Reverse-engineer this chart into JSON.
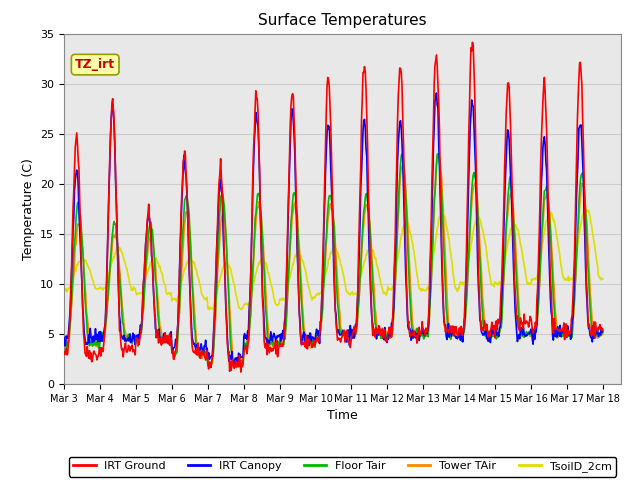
{
  "title": "Surface Temperatures",
  "xlabel": "Time",
  "ylabel": "Temperature (C)",
  "ylim": [
    0,
    35
  ],
  "annotation_text": "TZ_irt",
  "legend_labels": [
    "IRT Ground",
    "IRT Canopy",
    "Floor Tair",
    "Tower TAir",
    "TsoilD_2cm"
  ],
  "legend_colors": [
    "#ff0000",
    "#0000ff",
    "#00bb00",
    "#ff8800",
    "#dddd00"
  ],
  "line_colors": {
    "irt_ground": "#ff0000",
    "irt_canopy": "#0000ff",
    "floor_tair": "#00bb00",
    "tower_tair": "#ff8800",
    "tsoil_2cm": "#dddd00"
  },
  "x_tick_labels": [
    "Mar 3",
    "Mar 4",
    "Mar 5",
    "Mar 6",
    "Mar 7",
    "Mar 8",
    "Mar 9",
    "Mar 10",
    "Mar 11",
    "Mar 12",
    "Mar 13",
    "Mar 14",
    "Mar 15",
    "Mar 16",
    "Mar 17",
    "Mar 18"
  ],
  "yticks": [
    0,
    5,
    10,
    15,
    20,
    25,
    30,
    35
  ],
  "grid_color": "#cccccc",
  "plot_bg": "#e8e8e8"
}
